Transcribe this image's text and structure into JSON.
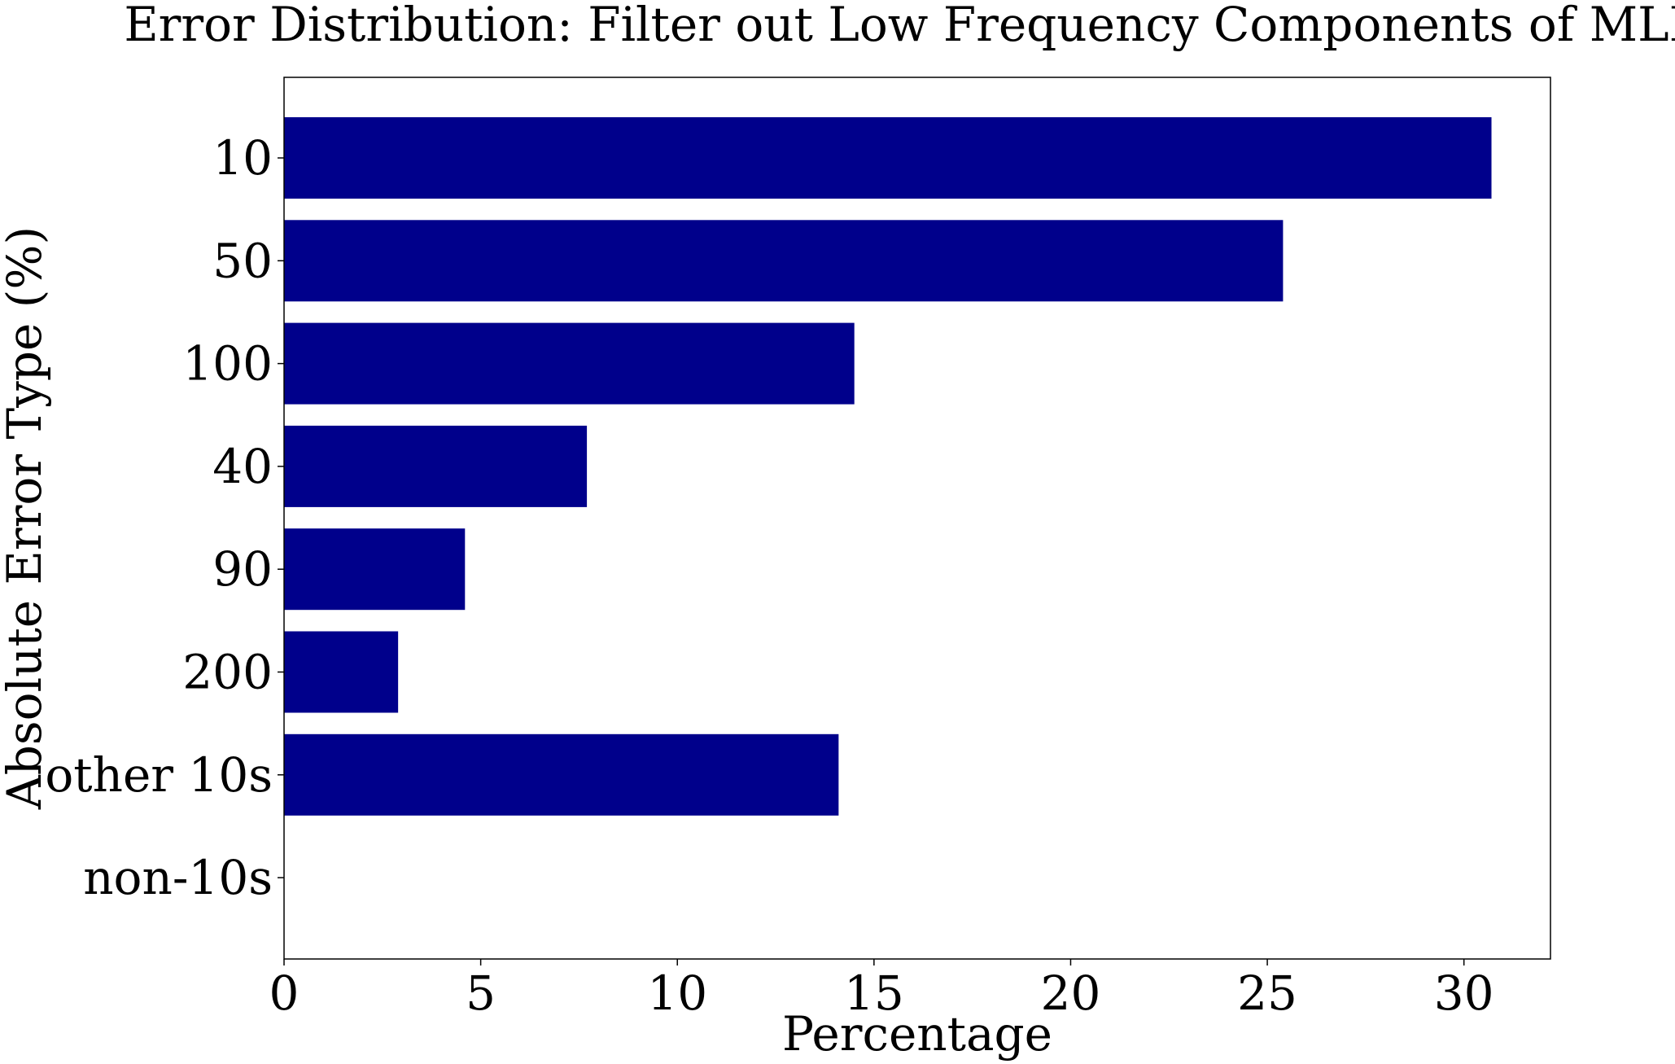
{
  "chart_data": {
    "type": "bar",
    "orientation": "horizontal",
    "title": "Error Distribution: Filter out Low Frequency Components of MLP",
    "xlabel": "Percentage",
    "ylabel": "Absolute Error Type (%)",
    "categories": [
      "10",
      "50",
      "100",
      "40",
      "90",
      "200",
      "other 10s",
      "non-10s"
    ],
    "values": [
      30.7,
      25.4,
      14.5,
      7.7,
      4.6,
      2.9,
      14.1,
      0
    ],
    "xlim": [
      0,
      32.2
    ],
    "xticks": [
      0,
      5,
      10,
      15,
      20,
      25,
      30
    ],
    "xtick_labels": [
      "0",
      "5",
      "10",
      "15",
      "20",
      "25",
      "30"
    ],
    "grid": false,
    "bar_color": "#00008b"
  }
}
